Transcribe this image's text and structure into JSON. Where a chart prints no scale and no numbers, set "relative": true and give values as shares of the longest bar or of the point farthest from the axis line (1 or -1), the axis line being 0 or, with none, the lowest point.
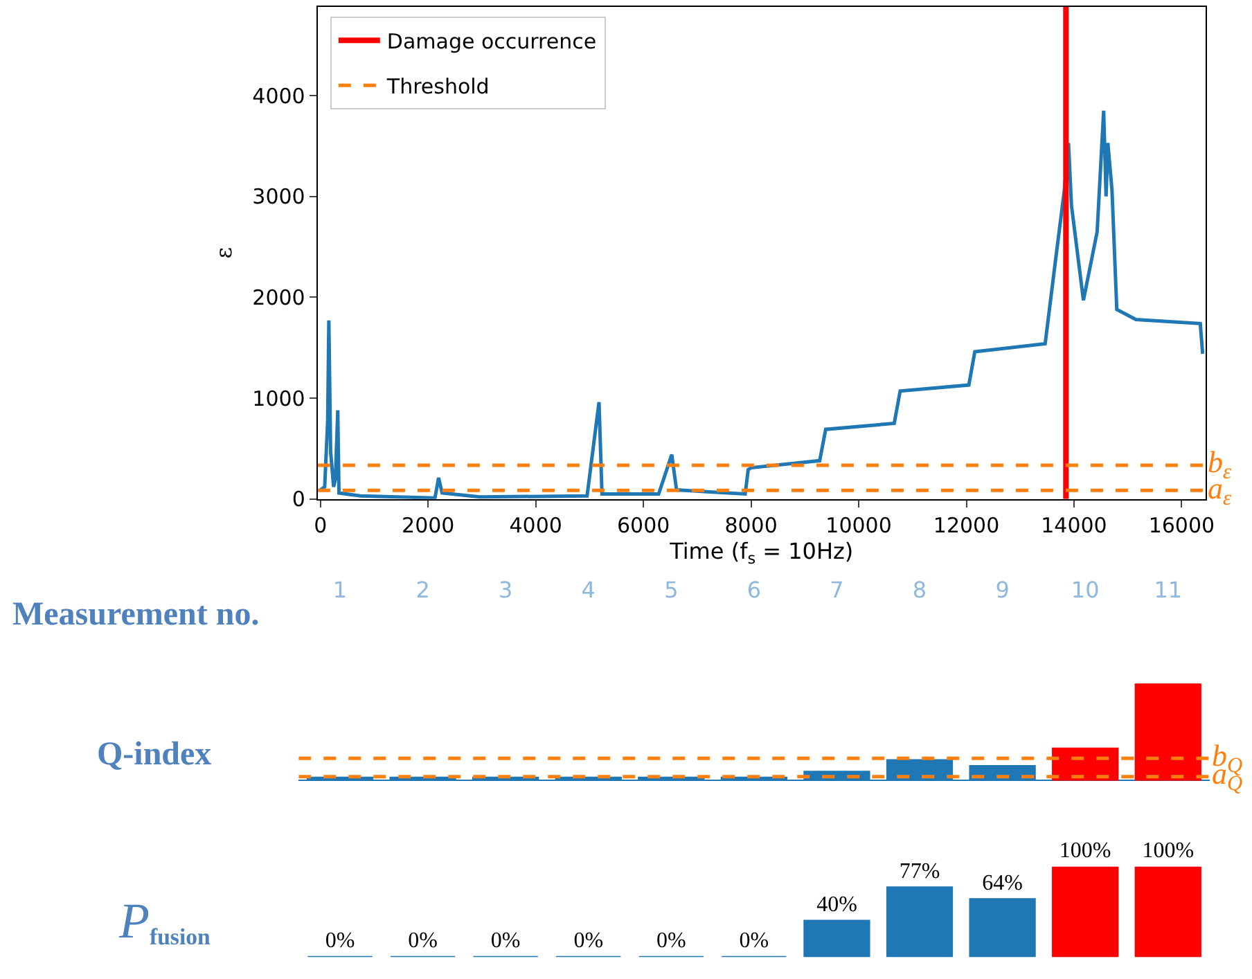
{
  "chart_data": [
    {
      "type": "line",
      "xlabel": "Time (f$_{s}$ = 10Hz)",
      "ylabel": "ε",
      "x": [
        0,
        78,
        133,
        155,
        188,
        244,
        277,
        321,
        343,
        742,
        2127,
        2194,
        2260,
        2958,
        4953,
        5175,
        5230,
        6283,
        6527,
        6615,
        7891,
        7946,
        8000,
        9275,
        9386,
        10660,
        10770,
        12046,
        12157,
        13464,
        13653,
        13820,
        13898,
        13953,
        14175,
        14430,
        14551,
        14596,
        14629,
        14706,
        14795,
        15150,
        16346,
        16390
      ],
      "series": [
        {
          "color": "#1f77b4",
          "values": [
            90,
            120,
            770,
            1770,
            470,
            120,
            200,
            880,
            60,
            30,
            10,
            210,
            60,
            20,
            30,
            960,
            50,
            50,
            440,
            90,
            50,
            290,
            310,
            380,
            690,
            750,
            1070,
            1130,
            1460,
            1540,
            2350,
            3060,
            3530,
            2910,
            1970,
            2650,
            3850,
            3000,
            3530,
            3060,
            1880,
            1780,
            1740,
            1440
          ]
        },
        {
          "name": "Damage occurrence",
          "color": "#ff0000",
          "x": [
            13850,
            13850
          ],
          "values": [
            0,
            4880
          ]
        }
      ],
      "xlim": [
        -50,
        16440
      ],
      "ylim": [
        0,
        4880
      ],
      "xticks": [
        0,
        2000,
        4000,
        6000,
        8000,
        10000,
        12000,
        14000,
        16000
      ],
      "yticks": [
        0,
        1000,
        2000,
        3000,
        4000
      ],
      "ref_lines": [
        {
          "axis": "y",
          "value": 335,
          "label": "Threshold",
          "color": "#ff7f0e",
          "line_style": "dashed"
        },
        {
          "axis": "y",
          "value": 85,
          "color": "#ff7f0e",
          "line_style": "dashed"
        }
      ],
      "annotations": [
        {
          "text": "b$_{ε}$",
          "x": 16440,
          "y": 335
        },
        {
          "text": "a$_{ε}$",
          "x": 16440,
          "y": 85
        }
      ],
      "legend": "top left"
    },
    {
      "type": "bar",
      "relative": true,
      "xlabel": "Measurement no.",
      "ylabel": "Q-index",
      "categories": [
        "1",
        "2",
        "3",
        "4",
        "5",
        "6",
        "7",
        "8",
        "9",
        "10",
        "11"
      ],
      "values": [
        0.03,
        0.03,
        0.03,
        0.03,
        0.03,
        0.03,
        0.09,
        0.21,
        0.15,
        0.33,
        1
      ],
      "colors": [
        "#1f77b4",
        "#1f77b4",
        "#1f77b4",
        "#1f77b4",
        "#1f77b4",
        "#1f77b4",
        "#1f77b4",
        "#1f77b4",
        "#1f77b4",
        "#ff0000",
        "#ff0000"
      ],
      "ref_lines": [
        {
          "axis": "y",
          "value": 0.23,
          "label": "b$_{Q}$",
          "color": "#ff7f0e",
          "line_style": "dashed"
        },
        {
          "axis": "y",
          "value": 0.04,
          "label": "a$_{Q}$",
          "color": "#ff7f0e",
          "line_style": "dashed"
        }
      ],
      "tick_labels": "x"
    },
    {
      "type": "bar",
      "ylabel": "P$_{fusion}$",
      "categories": [
        null,
        null,
        null,
        null,
        null,
        null,
        null,
        null,
        null,
        null,
        null
      ],
      "values": [
        0,
        0,
        0,
        0,
        0,
        0,
        40,
        77,
        64,
        100,
        100
      ],
      "value_labels": [
        "0%",
        "0%",
        "0%",
        "0%",
        "0%",
        "0%",
        "40%",
        "77%",
        "64%",
        "100%",
        "100%"
      ],
      "colors": [
        "#1f77b4",
        "#1f77b4",
        "#1f77b4",
        "#1f77b4",
        "#1f77b4",
        "#1f77b4",
        "#1f77b4",
        "#1f77b4",
        "#1f77b4",
        "#ff0000",
        "#ff0000"
      ],
      "ylim": [
        0,
        100
      ],
      "tick_labels": false
    }
  ]
}
